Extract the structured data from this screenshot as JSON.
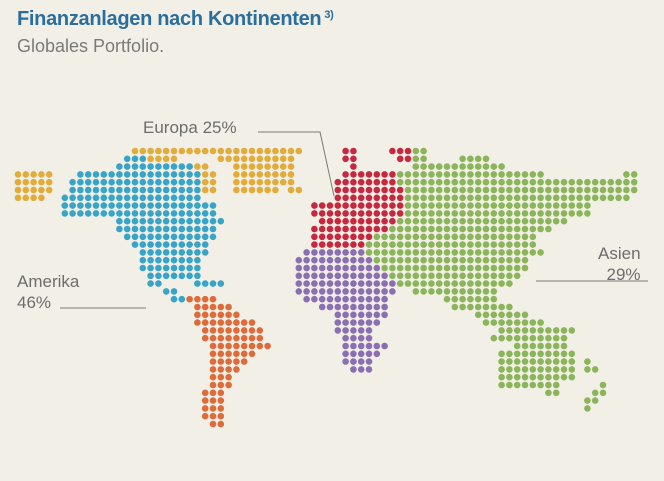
{
  "title": "Finanzanlagen nach Kontinenten",
  "title_footnote": "3)",
  "subtitle": "Globales Portfolio.",
  "chart_data": {
    "type": "pie",
    "title": "Finanzanlagen nach Kontinenten",
    "subtitle": "Globales Portfolio.",
    "series": [
      {
        "name": "Amerika",
        "value": 46,
        "unit": "%",
        "color": "#37a4c8"
      },
      {
        "name": "Europa",
        "value": 25,
        "unit": "%",
        "color": "#c8283f"
      },
      {
        "name": "Asien",
        "value": 29,
        "unit": "%",
        "color": "#8bb55a"
      }
    ],
    "other_region_colors": {
      "greenland_arctic": "#e2ac3a",
      "south_america": "#df6b3a",
      "africa": "#8a6fb2"
    }
  },
  "labels": {
    "europa": {
      "name": "Europa",
      "value": "25%"
    },
    "amerika": {
      "name": "Amerika",
      "value": "46%"
    },
    "asien": {
      "name": "Asien",
      "value": "29%"
    }
  }
}
